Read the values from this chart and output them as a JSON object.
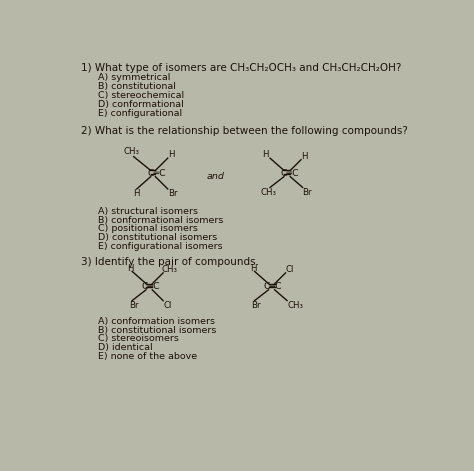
{
  "bg_color": "#b8b8a8",
  "text_color": "#1a1208",
  "q1_question": "1) What type of isomers are CH₃CH₂OCH₃ and CH₃CH₂CH₂OH?",
  "q1_options": [
    "A) symmetrical",
    "B) constitutional",
    "C) stereochemical",
    "D) conformational",
    "E) configurational"
  ],
  "q2_question": "2) What is the relationship between the following compounds?",
  "q2_options": [
    "A) structural isomers",
    "B) conformational isomers",
    "C) positional isomers",
    "D) constitutional isomers",
    "E) configurational isomers"
  ],
  "q3_question": "3) Identify the pair of compounds.",
  "q3_options": [
    "A) conformation isomers",
    "B) constitutional isomers",
    "C) stereoisomers",
    "D) identical",
    "E) none of the above"
  ],
  "fs_q": 7.5,
  "fs_opt": 6.8,
  "fs_mol": 6.2,
  "lw": 1.0
}
